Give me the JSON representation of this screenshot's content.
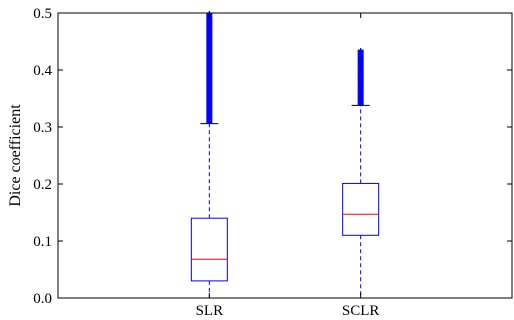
{
  "chart_data": {
    "type": "boxplot",
    "title": "",
    "xlabel": "",
    "ylabel": "Dice coefficient",
    "ylim": [
      0,
      0.5
    ],
    "y_ticks": [
      0.0,
      0.1,
      0.2,
      0.3,
      0.4,
      0.5
    ],
    "y_tick_labels": [
      "0.0",
      "0.1",
      "0.2",
      "0.3",
      "0.4",
      "0.5"
    ],
    "categories": [
      "SLR",
      "SCLR"
    ],
    "grid": false,
    "colors": {
      "box": "#0000ff",
      "median": "#ff0000",
      "whisker": "#0000ff",
      "outlier": "#0000ff",
      "axis": "#000000"
    },
    "boxes": [
      {
        "category": "SLR",
        "whisker_low": 0.0,
        "q1": 0.03,
        "median": 0.068,
        "q3": 0.14,
        "whisker_high": 0.306,
        "outliers_range": [
          0.306,
          0.5
        ]
      },
      {
        "category": "SCLR",
        "whisker_low": 0.0,
        "q1": 0.11,
        "median": 0.147,
        "q3": 0.201,
        "whisker_high": 0.338,
        "outliers_range": [
          0.338,
          0.435
        ]
      }
    ]
  }
}
